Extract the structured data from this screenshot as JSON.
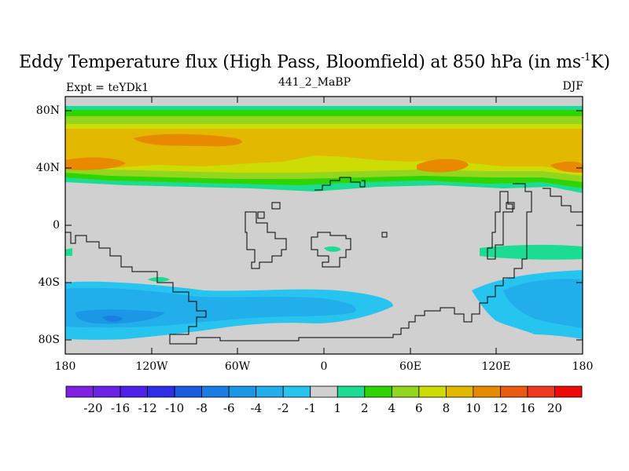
{
  "title": {
    "main": "Eddy Temperature flux (High Pass, Bloomfield) at 850 hPa (in ms",
    "sup": "-1",
    "tail": "K)"
  },
  "subtitle_left": "Expt = teYDk1",
  "subtitle_center": "441_2_MaBP",
  "subtitle_right": "DJF",
  "map": {
    "lat_ticks": [
      "80N",
      "40N",
      "0",
      "40S",
      "80S"
    ],
    "lon_ticks": [
      "180",
      "120W",
      "60W",
      "0",
      "60E",
      "120E",
      "180"
    ],
    "lat_range": [
      -90,
      90
    ],
    "lon_range": [
      -180,
      180
    ]
  },
  "colorbar": {
    "labels": [
      "-20",
      "-16",
      "-12",
      "-10",
      "-8",
      "-6",
      "-4",
      "-2",
      "-1",
      "1",
      "2",
      "4",
      "6",
      "8",
      "10",
      "12",
      "16",
      "20"
    ],
    "colors": [
      "#8020e0",
      "#6a22e6",
      "#4e22ea",
      "#2e2ee6",
      "#1c5ae0",
      "#1a7ee4",
      "#1a98e6",
      "#22aeea",
      "#26c4ee",
      "#d0d0d0",
      "#1cdc94",
      "#30d400",
      "#92d61e",
      "#cedc06",
      "#e2b800",
      "#e88a00",
      "#ea5a10",
      "#ee3a20",
      "#ea0a0a"
    ]
  }
}
